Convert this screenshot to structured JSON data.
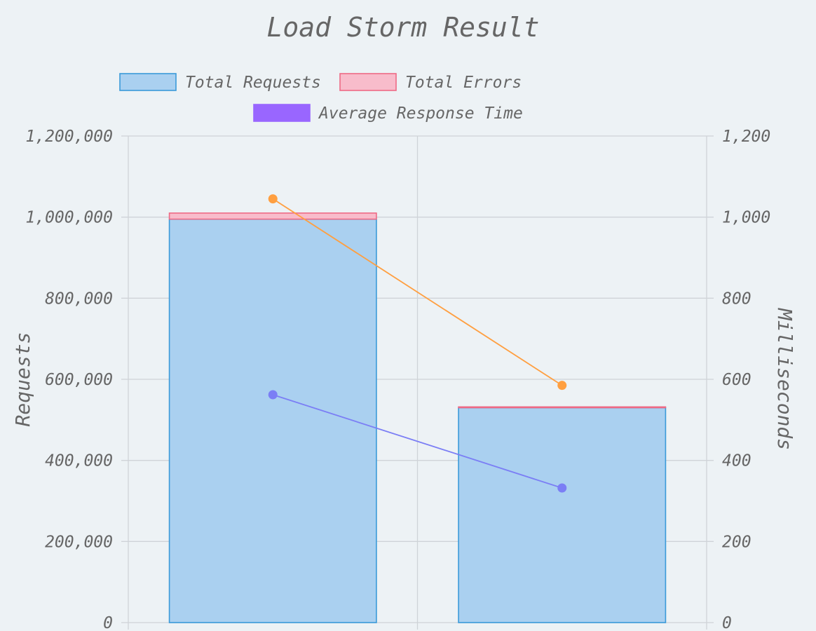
{
  "chart_data": {
    "type": "bar",
    "title": "Load Storm Result",
    "categories": [
      "",
      ""
    ],
    "y_left": {
      "label": "Requests",
      "min": 0,
      "max": 1200000,
      "step": 200000,
      "tick_labels": [
        "0",
        "200,000",
        "400,000",
        "600,000",
        "800,000",
        "1,000,000",
        "1,200,000"
      ]
    },
    "y_right": {
      "label": "Milliseconds",
      "min": 0,
      "max": 1200,
      "step": 200,
      "tick_labels": [
        "0",
        "200",
        "400",
        "600",
        "800",
        "1,000",
        "1,200"
      ]
    },
    "series": [
      {
        "name": "Total Requests",
        "kind": "bar",
        "axis": "left",
        "values": [
          995000,
          530000
        ],
        "fill": "#aad0f0",
        "stroke": "#3a9ad9"
      },
      {
        "name": "Total Errors",
        "kind": "bar-stacked",
        "axis": "left",
        "values": [
          15000,
          2000
        ],
        "fill": "#f8bccb",
        "stroke": "#ee6a85"
      },
      {
        "name": "Average Response Time",
        "kind": "line",
        "axis": "right",
        "values": [
          562,
          332
        ],
        "color": "#7b7ef5",
        "legend_fill": "#9966ff"
      },
      {
        "name": "",
        "kind": "line",
        "axis": "right",
        "values": [
          1045,
          585
        ],
        "color": "#ff9f40",
        "in_legend": false
      }
    ],
    "legend": {
      "position": "top",
      "items": [
        {
          "label": "Total Requests",
          "fill": "#aad0f0",
          "stroke": "#3a9ad9"
        },
        {
          "label": "Total Errors",
          "fill": "#f8bccb",
          "stroke": "#ee6a85"
        },
        {
          "label": "Average Response Time",
          "fill": "#9966ff",
          "stroke": "#9966ff"
        }
      ]
    },
    "grid": true
  }
}
